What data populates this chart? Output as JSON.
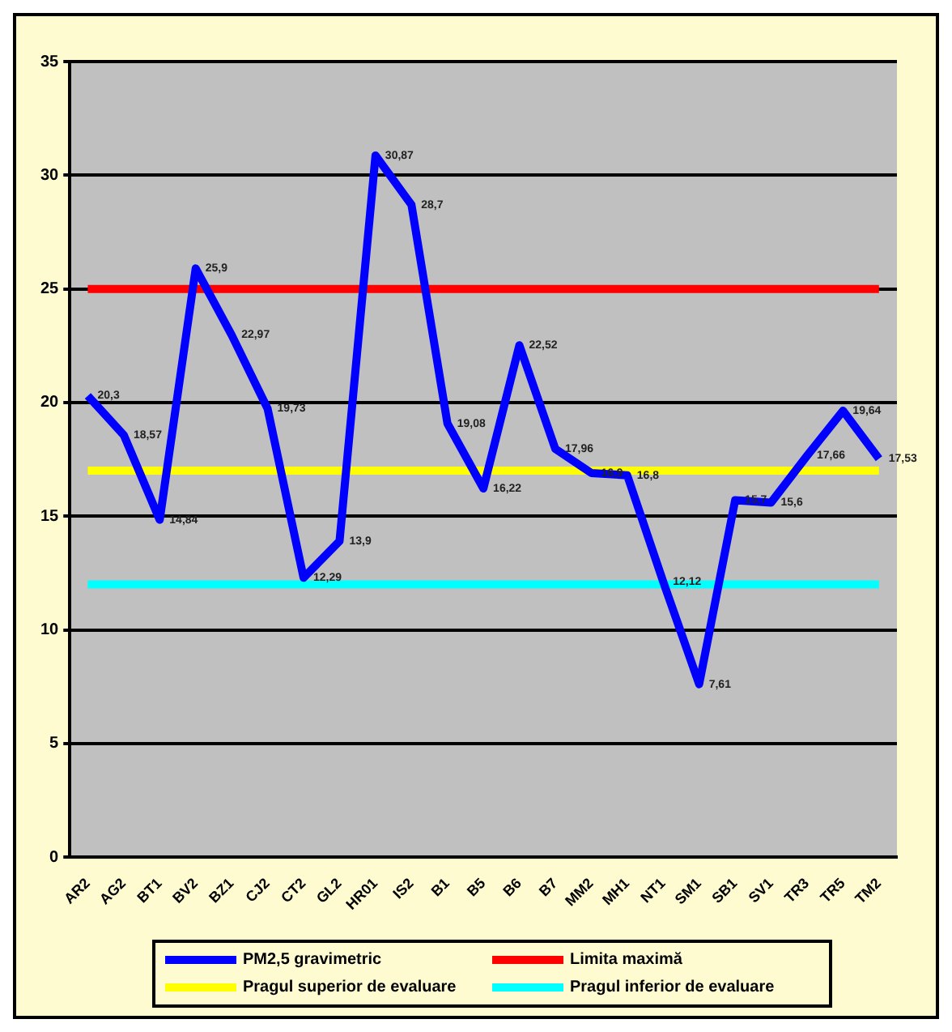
{
  "chart_data": {
    "type": "line",
    "categories": [
      "AR2",
      "AG2",
      "BT1",
      "BV2",
      "BZ1",
      "CJ2",
      "CT2",
      "GL2",
      "HR01",
      "IS2",
      "B1",
      "B5",
      "B6",
      "B7",
      "MM2",
      "MH1",
      "NT1",
      "SM1",
      "SB1",
      "SV1",
      "TR3",
      "TR5",
      "TM2"
    ],
    "series": [
      {
        "name": "PM2,5 gravimetric",
        "color": "#0000ff",
        "values": [
          20.3,
          18.57,
          14.84,
          25.9,
          22.97,
          19.73,
          12.29,
          13.9,
          30.87,
          28.7,
          19.08,
          16.22,
          22.52,
          17.96,
          16.9,
          16.8,
          12.12,
          7.61,
          15.7,
          15.6,
          17.66,
          19.64,
          17.53
        ],
        "value_labels": [
          "20,3",
          "18,57",
          "14,84",
          "25,9",
          "22,97",
          "19,73",
          "12,29",
          "13,9",
          "30,87",
          "28,7",
          "19,08",
          "16,22",
          "22,52",
          "17,96",
          "16,9",
          "16,8",
          "12,12",
          "7,61",
          "15,7",
          "15,6",
          "17,66",
          "19,64",
          "17,53"
        ]
      },
      {
        "name": "Limita maximă",
        "color": "#ff0000",
        "values": [
          25,
          25,
          25,
          25,
          25,
          25,
          25,
          25,
          25,
          25,
          25,
          25,
          25,
          25,
          25,
          25,
          25,
          25,
          25,
          25,
          25,
          25,
          25
        ]
      },
      {
        "name": "Pragul superior de evaluare",
        "color": "#ffff00",
        "values": [
          17,
          17,
          17,
          17,
          17,
          17,
          17,
          17,
          17,
          17,
          17,
          17,
          17,
          17,
          17,
          17,
          17,
          17,
          17,
          17,
          17,
          17,
          17
        ]
      },
      {
        "name": "Pragul inferior de evaluare",
        "color": "#00ffff",
        "values": [
          12,
          12,
          12,
          12,
          12,
          12,
          12,
          12,
          12,
          12,
          12,
          12,
          12,
          12,
          12,
          12,
          12,
          12,
          12,
          12,
          12,
          12,
          12
        ]
      }
    ],
    "ylim": [
      0,
      35
    ],
    "yticks": [
      0,
      5,
      10,
      15,
      20,
      25,
      30,
      35
    ],
    "grid": "y",
    "legend": "bottom",
    "marker": "none",
    "line_style": "solid"
  }
}
